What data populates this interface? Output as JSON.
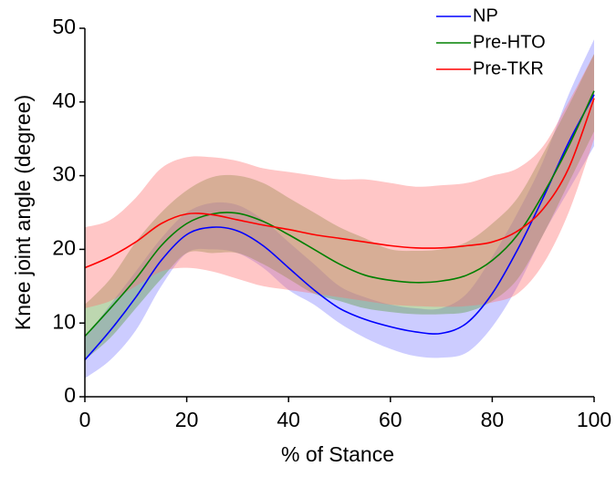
{
  "chart_data": {
    "type": "line",
    "xlabel": "% of Stance",
    "ylabel": "Knee joint angle (degree)",
    "x": [
      0,
      5,
      10,
      15,
      20,
      25,
      30,
      35,
      40,
      45,
      50,
      55,
      60,
      65,
      70,
      75,
      80,
      85,
      90,
      95,
      100
    ],
    "series": [
      {
        "name": "NP",
        "color": "#0000ff",
        "band_color": "#8080ff",
        "values": [
          5,
          9,
          13.5,
          18.5,
          22,
          23,
          22.5,
          20.5,
          17.5,
          14.5,
          12,
          10.5,
          9.5,
          8.8,
          8.6,
          10,
          14,
          20,
          27,
          34.5,
          41
        ],
        "lower": [
          2.5,
          5,
          9,
          15,
          19.5,
          20,
          19.5,
          17.5,
          14.5,
          12.5,
          10,
          8,
          6.5,
          5.5,
          5.3,
          6,
          9.5,
          15,
          22,
          28,
          34
        ],
        "upper": [
          8,
          12.5,
          17,
          21.5,
          25,
          26.3,
          26,
          24,
          21,
          18,
          15,
          13.5,
          12.5,
          12,
          12,
          14,
          19,
          25,
          32,
          41,
          48.5
        ]
      },
      {
        "name": "Pre-HTO",
        "color": "#008000",
        "band_color": "#5a9a3a",
        "values": [
          8.2,
          12,
          16,
          20.5,
          23.5,
          24.8,
          24.9,
          23.8,
          22,
          20,
          18,
          16.5,
          15.8,
          15.5,
          15.7,
          16.5,
          18.5,
          22,
          27.5,
          34,
          41.5
        ],
        "lower": [
          5,
          8,
          12,
          16,
          19.5,
          19.5,
          19.5,
          18,
          16,
          14,
          13,
          12,
          11.5,
          11.2,
          11.2,
          11.5,
          13,
          16,
          22,
          29,
          36
        ],
        "upper": [
          12.5,
          16,
          21,
          25,
          28,
          29.8,
          30,
          29,
          27,
          25,
          23,
          21.5,
          20,
          19.8,
          20,
          21,
          23.5,
          27,
          33,
          39.5,
          46.5
        ]
      },
      {
        "name": "Pre-TKR",
        "color": "#ff0000",
        "band_color": "#ff7070",
        "values": [
          17.5,
          19,
          21,
          23.5,
          24.8,
          24.7,
          24,
          23.3,
          22.7,
          22,
          21.5,
          21,
          20.5,
          20.2,
          20.2,
          20.5,
          21,
          22.5,
          25.5,
          31,
          40.5
        ],
        "lower": [
          12,
          13,
          15,
          17,
          17.5,
          17,
          16,
          15,
          14.5,
          14,
          13.5,
          13,
          12.5,
          12.3,
          12.2,
          12.3,
          12.8,
          14,
          18,
          25,
          35
        ],
        "upper": [
          23,
          24,
          27,
          31,
          32.5,
          32.5,
          32,
          31,
          30.5,
          30,
          29.5,
          29.5,
          29,
          28.5,
          28.7,
          29,
          30,
          31,
          34,
          40,
          46.5
        ]
      }
    ],
    "xlim": [
      0,
      100
    ],
    "xticks": [
      0,
      20,
      40,
      60,
      80,
      100
    ],
    "ylim": [
      0,
      50
    ],
    "yticks": [
      0,
      10,
      20,
      30,
      40,
      50
    ],
    "legend": "upper right"
  }
}
